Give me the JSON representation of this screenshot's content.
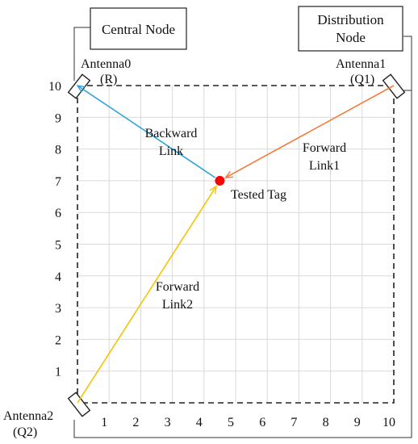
{
  "nodes": {
    "central": {
      "label": "Central Node"
    },
    "distribution": {
      "label_lines": [
        "Distribution",
        "Node"
      ]
    }
  },
  "antennas": [
    {
      "id": "antenna0",
      "label": "Antenna0",
      "sub": "(R)",
      "x": 0,
      "y": 10
    },
    {
      "id": "antenna1",
      "label": "Antenna1",
      "sub": "(Q1)",
      "x": 10,
      "y": 10
    },
    {
      "id": "antenna2",
      "label": "Antenna2",
      "sub": "(Q2)",
      "x": 0,
      "y": 0
    }
  ],
  "tag": {
    "label": "Tested Tag",
    "x": 4.5,
    "y": 7,
    "color": "#ff0000"
  },
  "links": [
    {
      "id": "backward-link",
      "from": "tag",
      "to": "antenna0",
      "label_lines": [
        "Backward",
        "Link"
      ],
      "color": "#2ea3dc"
    },
    {
      "id": "forward-link1",
      "from": "antenna1",
      "to": "tag",
      "label_lines": [
        "Forward",
        "Link1"
      ],
      "color": "#f47b3b"
    },
    {
      "id": "forward-link2",
      "from": "antenna2",
      "to": "tag",
      "label_lines": [
        "Forward",
        "Link2"
      ],
      "color": "#f5c400"
    }
  ],
  "axes": {
    "x_ticks": [
      "1",
      "2",
      "3",
      "4",
      "5",
      "6",
      "7",
      "8",
      "9",
      "10"
    ],
    "y_ticks": [
      "1",
      "2",
      "3",
      "4",
      "5",
      "6",
      "7",
      "8",
      "9",
      "10"
    ],
    "range": [
      0,
      10
    ],
    "grid": true
  }
}
